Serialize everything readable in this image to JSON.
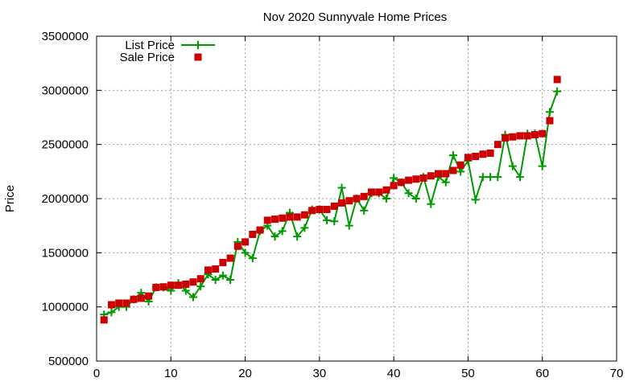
{
  "chart_data": {
    "type": "line",
    "title": "Nov 2020 Sunnyvale Home Prices",
    "xlabel": "",
    "ylabel": "Price",
    "xlim": [
      0,
      70
    ],
    "ylim": [
      500000,
      3500000
    ],
    "x_ticks": [
      0,
      10,
      20,
      30,
      40,
      50,
      60,
      70
    ],
    "y_ticks": [
      500000,
      1000000,
      1500000,
      2000000,
      2500000,
      3000000,
      3500000
    ],
    "grid": true,
    "legend_position": "top-left",
    "series": [
      {
        "name": "List Price",
        "style": "line-with-plus-markers",
        "color": "#009900",
        "x": [
          1,
          2,
          3,
          4,
          5,
          6,
          7,
          8,
          9,
          10,
          11,
          12,
          13,
          14,
          15,
          16,
          17,
          18,
          19,
          20,
          21,
          22,
          23,
          24,
          25,
          26,
          27,
          28,
          29,
          30,
          31,
          32,
          33,
          34,
          35,
          36,
          37,
          38,
          39,
          40,
          41,
          42,
          43,
          44,
          45,
          46,
          47,
          48,
          49,
          50,
          51,
          52,
          53,
          54,
          55,
          56,
          57,
          58,
          59,
          60,
          61,
          62
        ],
        "values": [
          930000,
          950000,
          1000000,
          1000000,
          1070000,
          1130000,
          1050000,
          1180000,
          1180000,
          1150000,
          1220000,
          1150000,
          1090000,
          1190000,
          1300000,
          1250000,
          1290000,
          1250000,
          1600000,
          1500000,
          1450000,
          1700000,
          1750000,
          1650000,
          1700000,
          1870000,
          1650000,
          1730000,
          1900000,
          1900000,
          1800000,
          1790000,
          2100000,
          1750000,
          2000000,
          1890000,
          2050000,
          2050000,
          2000000,
          2190000,
          2150000,
          2050000,
          2000000,
          2200000,
          1950000,
          2200000,
          2150000,
          2400000,
          2250000,
          2350000,
          1990000,
          2200000,
          2200000,
          2200000,
          2590000,
          2300000,
          2200000,
          2600000,
          2600000,
          2300000,
          2800000,
          2990000
        ]
      },
      {
        "name": "Sale Price",
        "style": "square-markers",
        "color": "#cc0000",
        "x": [
          1,
          2,
          3,
          4,
          5,
          6,
          7,
          8,
          9,
          10,
          11,
          12,
          13,
          14,
          15,
          16,
          17,
          18,
          19,
          20,
          21,
          22,
          23,
          24,
          25,
          26,
          27,
          28,
          29,
          30,
          31,
          32,
          33,
          34,
          35,
          36,
          37,
          38,
          39,
          40,
          41,
          42,
          43,
          44,
          45,
          46,
          47,
          48,
          49,
          50,
          51,
          52,
          53,
          54,
          55,
          56,
          57,
          58,
          59,
          60,
          61,
          62
        ],
        "values": [
          880000,
          1020000,
          1035000,
          1035000,
          1070000,
          1080000,
          1100000,
          1180000,
          1185000,
          1200000,
          1200000,
          1210000,
          1230000,
          1260000,
          1340000,
          1350000,
          1410000,
          1450000,
          1560000,
          1600000,
          1670000,
          1710000,
          1800000,
          1810000,
          1820000,
          1830000,
          1830000,
          1850000,
          1890000,
          1900000,
          1900000,
          1930000,
          1960000,
          1980000,
          2000000,
          2020000,
          2060000,
          2060000,
          2080000,
          2120000,
          2150000,
          2170000,
          2180000,
          2190000,
          2210000,
          2230000,
          2230000,
          2260000,
          2310000,
          2380000,
          2390000,
          2410000,
          2420000,
          2500000,
          2560000,
          2570000,
          2580000,
          2580000,
          2590000,
          2600000,
          2720000,
          3100000
        ]
      }
    ]
  }
}
